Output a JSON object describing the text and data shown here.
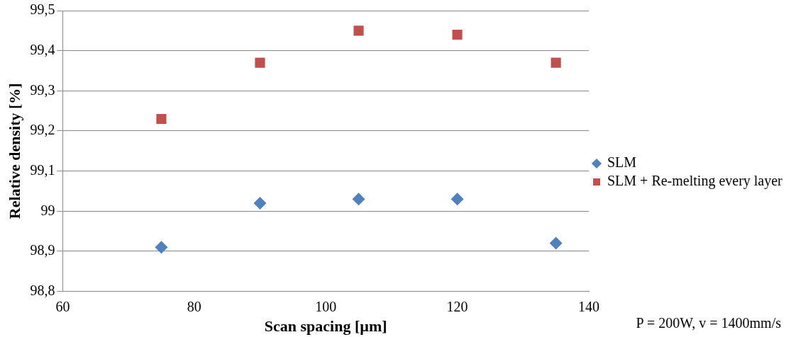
{
  "chart_data": {
    "type": "scatter",
    "xlabel": "Scan spacing [µm]",
    "ylabel": "Relative density [%]",
    "x": [
      75,
      90,
      105,
      120,
      135
    ],
    "series": [
      {
        "name": "SLM",
        "color": "#4f81bd",
        "marker": "diamond",
        "values": [
          98.91,
          99.02,
          99.03,
          99.03,
          98.92
        ]
      },
      {
        "name": "SLM + Re-melting every layer",
        "color": "#c0504d",
        "marker": "square",
        "values": [
          99.23,
          99.37,
          99.45,
          99.44,
          99.37
        ]
      }
    ],
    "xlim": [
      60,
      140
    ],
    "xticks": [
      60,
      80,
      100,
      120,
      140
    ],
    "ylim": [
      98.8,
      99.5
    ],
    "yticks": [
      {
        "value": 98.8,
        "label": "98,8"
      },
      {
        "value": 98.9,
        "label": "98,9"
      },
      99,
      {
        "value": 99.1,
        "label": "99,1"
      },
      {
        "value": 99.2,
        "label": "99,2"
      },
      {
        "value": 99.3,
        "label": "99,3"
      },
      {
        "value": 99.4,
        "label": "99,4"
      },
      {
        "value": 99.5,
        "label": "99,5"
      }
    ],
    "grid": "y",
    "legend": "right",
    "annotations": [
      "P = 200W, v = 1400mm/s"
    ]
  }
}
